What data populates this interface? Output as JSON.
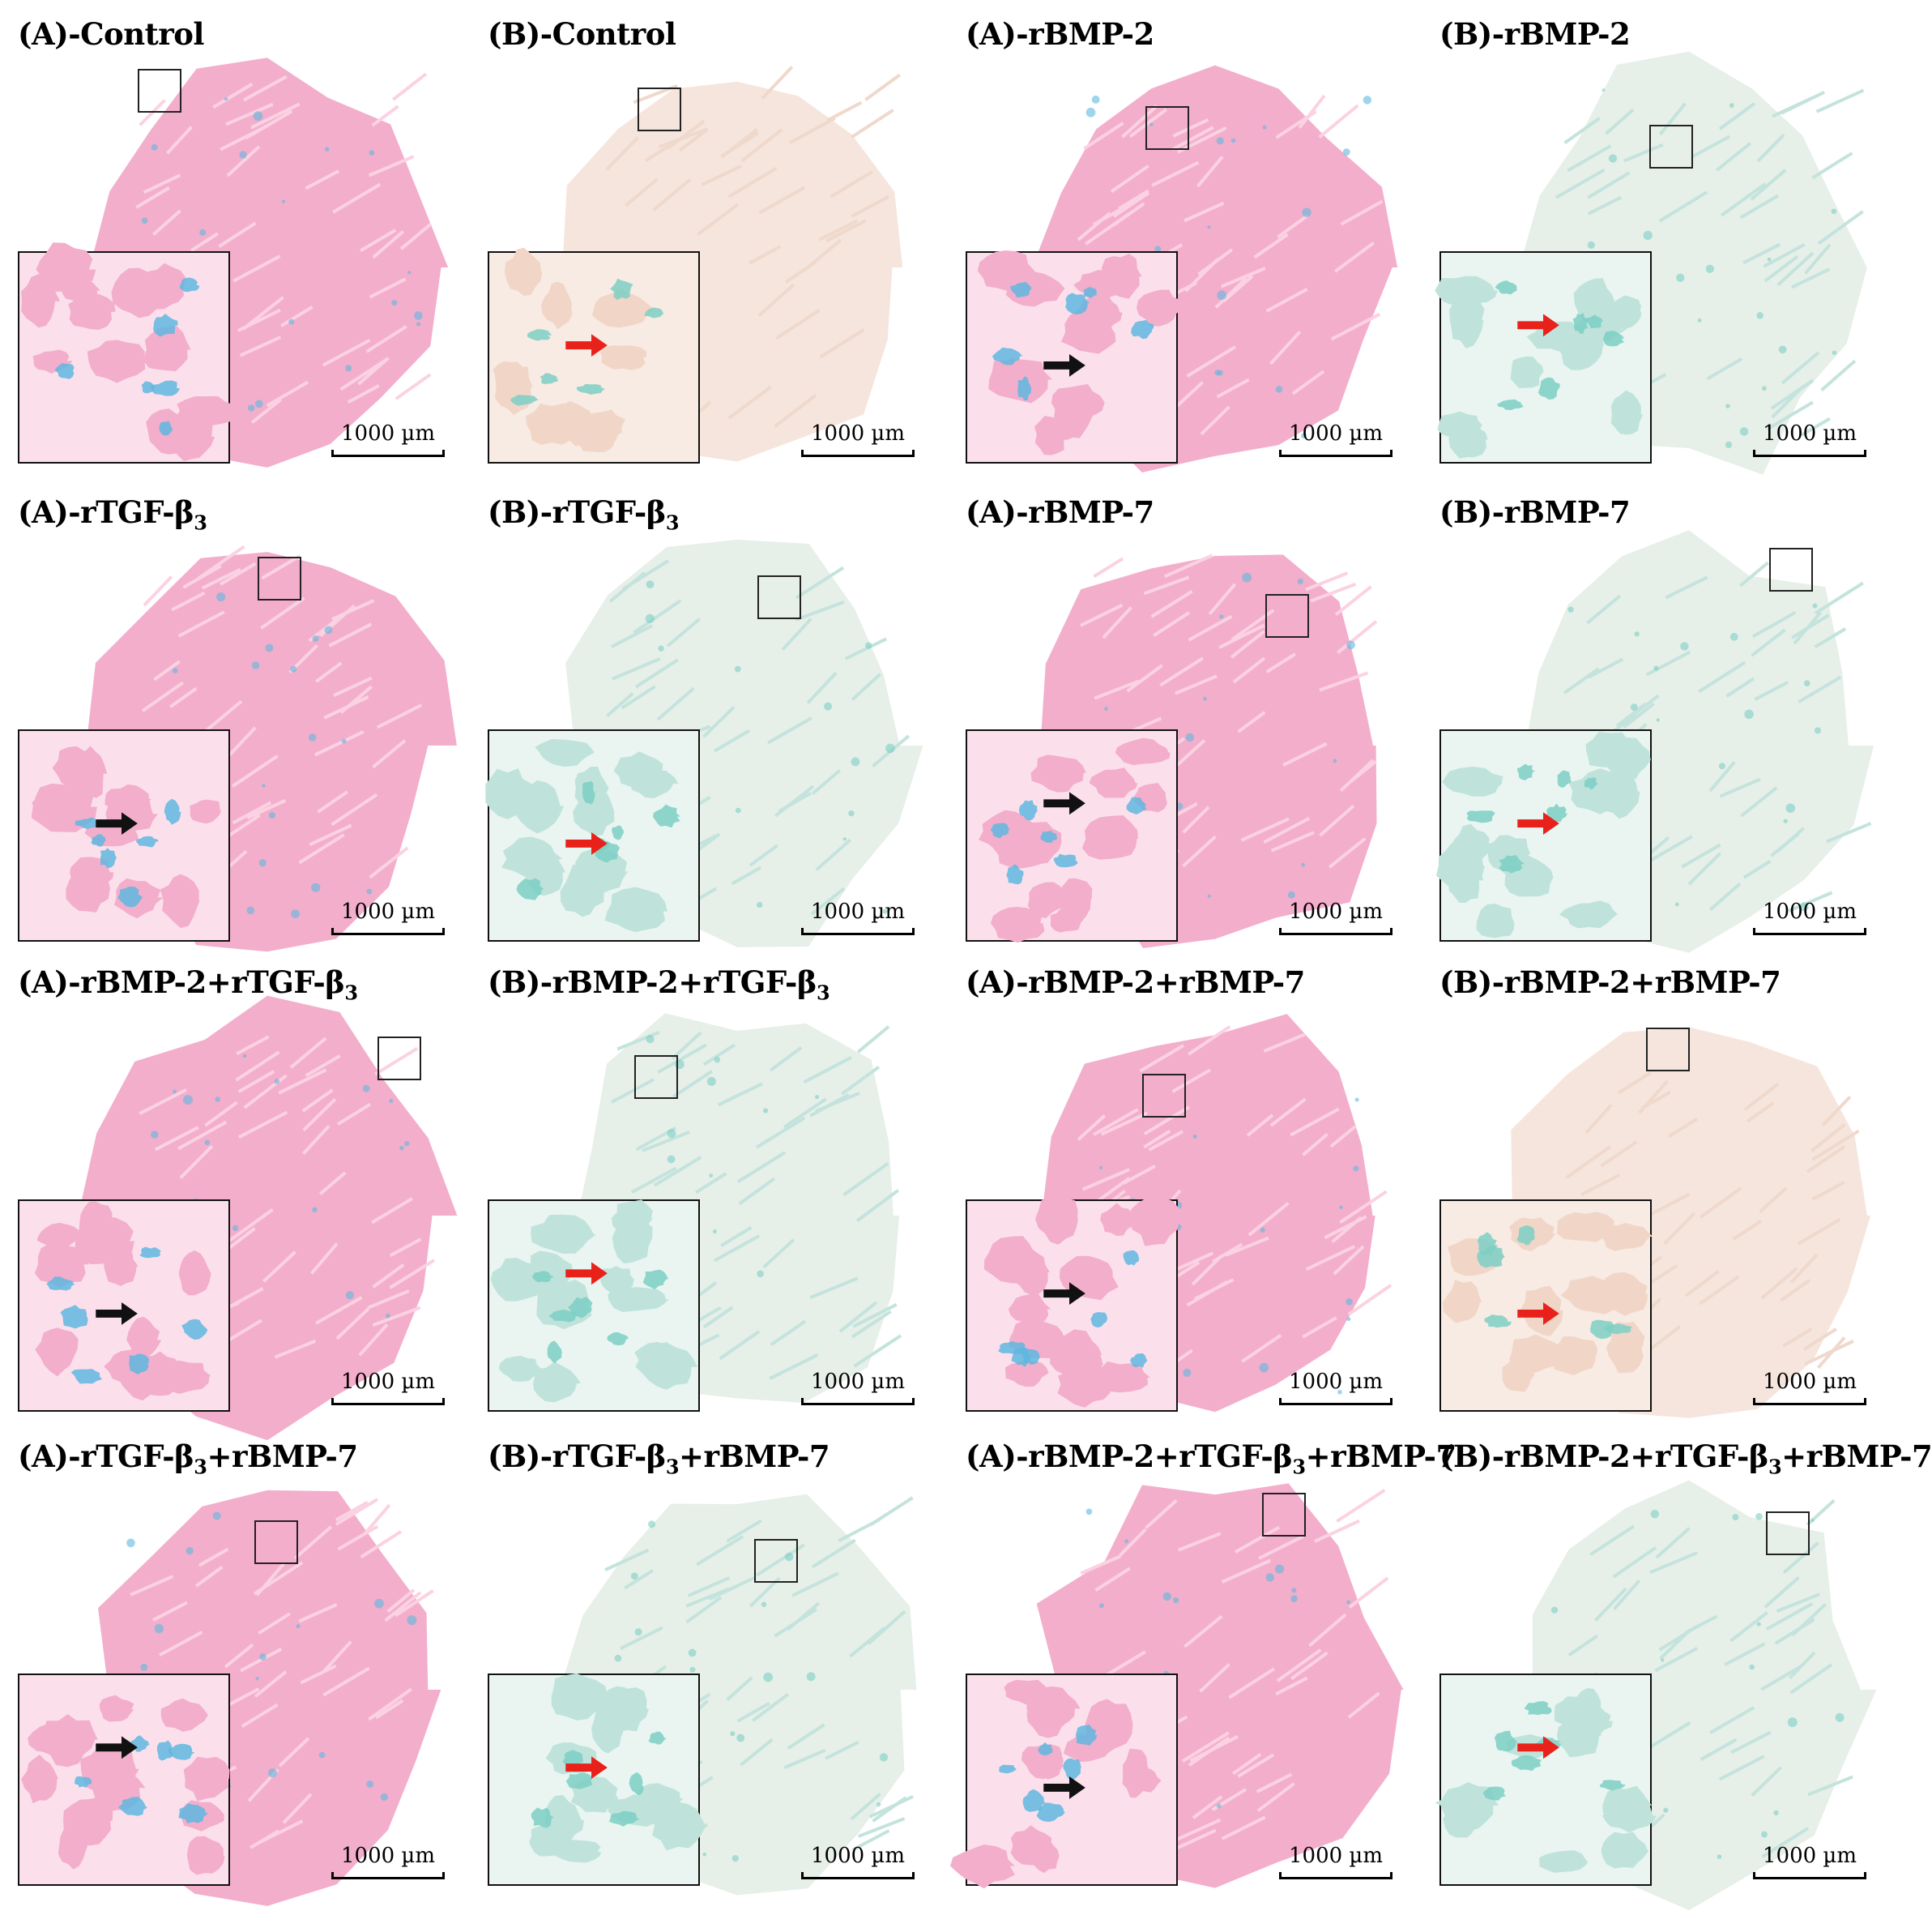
{
  "scale_bar_text": "1000 µm",
  "colors": {
    "pink_stain": "#f3aecb",
    "teal_stain": "#7ccfc4",
    "blue_stain": "#5fb7e0",
    "beige": "#f6e5dc",
    "red_arrow": "#e8221b",
    "black_arrow": "#111111"
  },
  "panels": [
    {
      "name": "A-control",
      "prefix": "(A)-Control",
      "sub": "",
      "suffix": "",
      "stain": "pink",
      "arrow": "none"
    },
    {
      "name": "B-control",
      "prefix": "(B)-Control",
      "sub": "",
      "suffix": "",
      "stain": "beige",
      "arrow": "red"
    },
    {
      "name": "A-rbmp2",
      "prefix": "(A)-rBMP-2",
      "sub": "",
      "suffix": "",
      "stain": "pink",
      "arrow": "black"
    },
    {
      "name": "B-rbmp2",
      "prefix": "(B)-rBMP-2",
      "sub": "",
      "suffix": "",
      "stain": "teal",
      "arrow": "red"
    },
    {
      "name": "A-rtgfb3",
      "prefix": "(A)-rTGF-β",
      "sub": "3",
      "suffix": "",
      "stain": "pink",
      "arrow": "black"
    },
    {
      "name": "B-rtgfb3",
      "prefix": "(B)-rTGF-β",
      "sub": "3",
      "suffix": "",
      "stain": "teal",
      "arrow": "red"
    },
    {
      "name": "A-rbmp7",
      "prefix": "(A)-rBMP-7",
      "sub": "",
      "suffix": "",
      "stain": "pink",
      "arrow": "black"
    },
    {
      "name": "B-rbmp7",
      "prefix": "(B)-rBMP-7",
      "sub": "",
      "suffix": "",
      "stain": "teal",
      "arrow": "red"
    },
    {
      "name": "A-rbmp2-rtgfb3",
      "prefix": "(A)-rBMP-2+rTGF-β",
      "sub": "3",
      "suffix": "",
      "stain": "pink",
      "arrow": "black"
    },
    {
      "name": "B-rbmp2-rtgfb3",
      "prefix": "(B)-rBMP-2+rTGF-β",
      "sub": "3",
      "suffix": "",
      "stain": "teal",
      "arrow": "red"
    },
    {
      "name": "A-rbmp2-rbmp7",
      "prefix": "(A)-rBMP-2+rBMP-7",
      "sub": "",
      "suffix": "",
      "stain": "pink",
      "arrow": "black"
    },
    {
      "name": "B-rbmp2-rbmp7",
      "prefix": "(B)-rBMP-2+rBMP-7",
      "sub": "",
      "suffix": "",
      "stain": "beige",
      "arrow": "red"
    },
    {
      "name": "A-rtgfb3-rbmp7",
      "prefix": "(A)-rTGF-β",
      "sub": "3",
      "suffix": "+rBMP-7",
      "stain": "pink",
      "arrow": "black"
    },
    {
      "name": "B-rtgfb3-rbmp7",
      "prefix": "(B)-rTGF-β",
      "sub": "3",
      "suffix": "+rBMP-7",
      "stain": "teal",
      "arrow": "red"
    },
    {
      "name": "A-rbmp2-rtgfb3-rbmp7",
      "prefix": "(A)-rBMP-2+rTGF-β",
      "sub": "3",
      "suffix": "+rBMP-7",
      "stain": "pink",
      "arrow": "black"
    },
    {
      "name": "B-rbmp2-rtgfb3-rbmp7",
      "prefix": "(B)-rBMP-2+rTGF-β",
      "sub": "3",
      "suffix": "+rBMP-7",
      "stain": "teal",
      "arrow": "red"
    }
  ]
}
